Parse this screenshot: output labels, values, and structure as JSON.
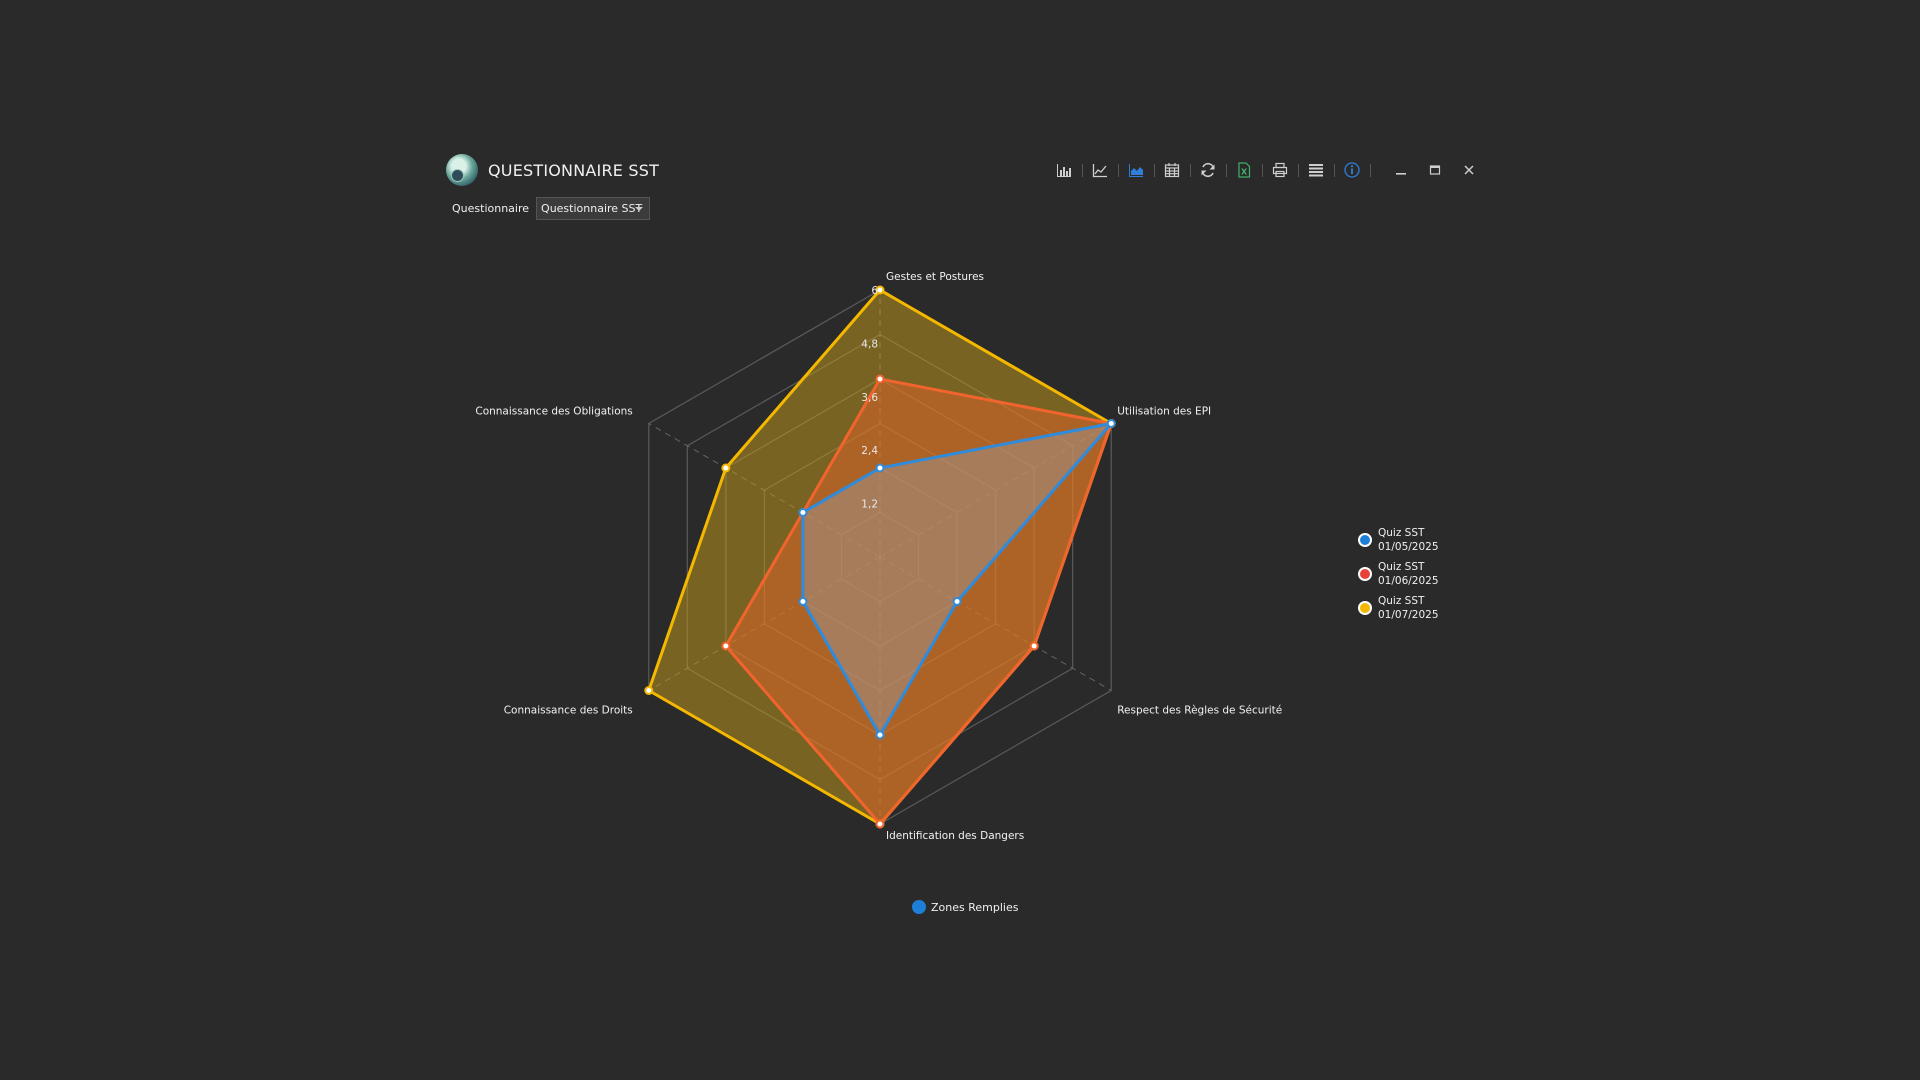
{
  "app": {
    "title": "QUESTIONNAIRE SST"
  },
  "toolbar": {
    "buttons": [
      {
        "icon": "bar-chart-icon",
        "color": "#cfcfcf"
      },
      {
        "icon": "line-chart-icon",
        "color": "#cfcfcf"
      },
      {
        "icon": "area-chart-icon",
        "color": "#2f7fd8"
      },
      {
        "icon": "calendar-icon",
        "color": "#cfcfcf"
      },
      {
        "icon": "refresh-icon",
        "color": "#cfcfcf"
      },
      {
        "icon": "excel-export-icon",
        "color": "#3fb168"
      },
      {
        "icon": "print-icon",
        "color": "#cfcfcf"
      },
      {
        "icon": "list-icon",
        "color": "#cfcfcf"
      },
      {
        "icon": "info-icon",
        "color": "#2f7fd8"
      }
    ],
    "window": [
      "minimize-icon",
      "maximize-icon",
      "close-icon"
    ]
  },
  "filter": {
    "label": "Questionnaire",
    "value": "Questionnaire SST"
  },
  "chart_data": {
    "type": "radar",
    "categories": [
      "Gestes et Postures",
      "Utilisation des EPI",
      "Respect des Règles de Sécurité",
      "Identification des Dangers",
      "Connaissance des Droits",
      "Connaissance des Obligations"
    ],
    "rmax": 6,
    "ticks": [
      "1,2",
      "2,4",
      "3,6",
      "4,8",
      "6"
    ],
    "series": [
      {
        "name": "Quiz SST 01/07/2025",
        "label_lines": [
          "Quiz SST",
          "01/07/2025"
        ],
        "color": "#f5b800",
        "fill": "#c79b1a",
        "fill_opacity": 0.5,
        "values": [
          6,
          6,
          4,
          6,
          6,
          4
        ]
      },
      {
        "name": "Quiz SST 01/06/2025",
        "label_lines": [
          "Quiz SST",
          "01/06/2025"
        ],
        "color": "#f0642d",
        "fill": "#f0642d",
        "fill_opacity": 0.45,
        "values": [
          4,
          6,
          4,
          6,
          4,
          2
        ]
      },
      {
        "name": "Quiz SST 01/05/2025",
        "label_lines": [
          "Quiz SST",
          "01/05/2025"
        ],
        "color": "#2f8bdc",
        "fill": "#9aa3ad",
        "fill_opacity": 0.4,
        "values": [
          2,
          6,
          2,
          4,
          2,
          2
        ]
      }
    ],
    "legend_order": [
      2,
      1,
      0
    ],
    "legend_colors": [
      "#1e7fd8",
      "#e8413a",
      "#f5b800"
    ],
    "fill_legend": {
      "label": "Zones Remplies",
      "color": "#1e7fd8"
    }
  }
}
